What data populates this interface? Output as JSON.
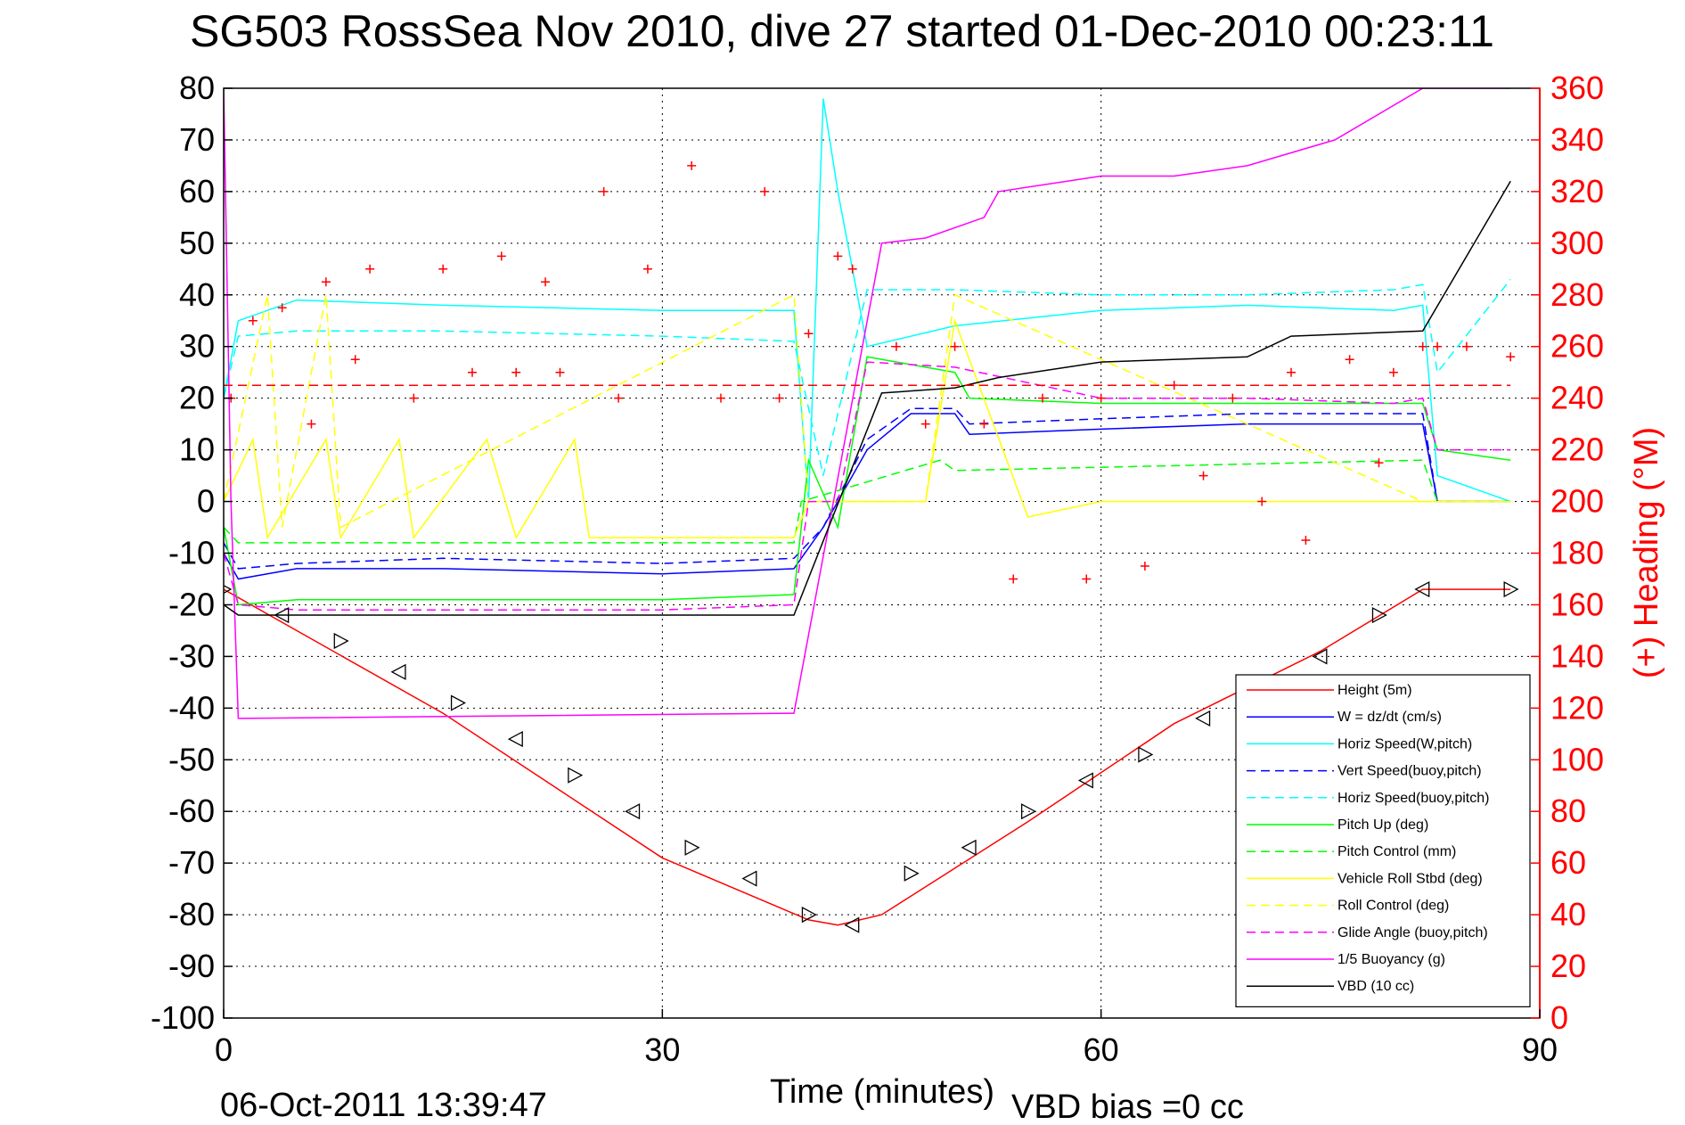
{
  "chart_data": {
    "type": "line",
    "title": "SG503 RossSea Nov 2010, dive 27 started 01-Dec-2010 00:23:11",
    "xlabel": "Time (minutes)",
    "ylabel": "",
    "ylabel_right": "(+) Heading (°M)",
    "xlim": [
      0,
      90
    ],
    "ylim": [
      -100,
      80
    ],
    "ylim_right": [
      0,
      360
    ],
    "x_ticks": [
      "0",
      "30",
      "60",
      "90"
    ],
    "y_ticks": [
      "80",
      "70",
      "60",
      "50",
      "40",
      "30",
      "20",
      "10",
      "0",
      "-10",
      "-20",
      "-30",
      "-40",
      "-50",
      "-60",
      "-70",
      "-80",
      "-90",
      "-100"
    ],
    "y_ticks_right": [
      "360",
      "340",
      "320",
      "300",
      "280",
      "260",
      "240",
      "220",
      "200",
      "180",
      "160",
      "140",
      "120",
      "100",
      "80",
      "60",
      "40",
      "20",
      "0"
    ],
    "grid": true,
    "legend_position": "bottom-right",
    "footer_left": "06-Oct-2011 13:39:47",
    "footer_right": "VBD bias =0 cc",
    "series": [
      {
        "name": "Height (5m)",
        "color": "#ff0000",
        "style": "solid",
        "x": [
          0,
          15,
          30,
          40,
          42,
          45,
          55,
          65,
          75,
          82,
          88
        ],
        "y": [
          -17,
          -41,
          -69,
          -81,
          -82,
          -80,
          -62,
          -43,
          -29,
          -17,
          -17
        ]
      },
      {
        "name": "W = dz/dt (cm/s)",
        "color": "#0000ff",
        "style": "solid",
        "x": [
          0,
          1,
          5,
          15,
          30,
          39,
          41,
          44,
          47,
          50,
          51,
          60,
          70,
          75,
          82,
          83,
          88
        ],
        "y": [
          -10,
          -15,
          -13,
          -13,
          -14,
          -13,
          -5,
          10,
          17,
          17,
          13,
          14,
          15,
          15,
          15,
          0,
          0
        ]
      },
      {
        "name": "Horiz Speed(W,pitch)",
        "color": "#00ffff",
        "style": "solid",
        "x": [
          0,
          1,
          5,
          15,
          30,
          39,
          40,
          41,
          42,
          44,
          50,
          60,
          70,
          80,
          82,
          83,
          88
        ],
        "y": [
          20,
          35,
          39,
          38,
          37,
          37,
          0,
          78,
          60,
          30,
          34,
          37,
          38,
          37,
          38,
          5,
          0
        ]
      },
      {
        "name": "Vert Speed(buoy,pitch)",
        "color": "#0000ff",
        "style": "dashed",
        "x": [
          0,
          1,
          5,
          15,
          30,
          39,
          41,
          44,
          47,
          50,
          51,
          60,
          70,
          80,
          82,
          83,
          88
        ],
        "y": [
          -8,
          -13,
          -12,
          -11,
          -12,
          -11,
          -5,
          12,
          18,
          18,
          15,
          16,
          17,
          17,
          17,
          0,
          0
        ]
      },
      {
        "name": "Horiz Speed(buoy,pitch)",
        "color": "#00ffff",
        "style": "dashed",
        "x": [
          0,
          1,
          5,
          15,
          30,
          39,
          41,
          44,
          50,
          60,
          70,
          80,
          82,
          83,
          88
        ],
        "y": [
          20,
          32,
          33,
          33,
          32,
          31,
          5,
          41,
          41,
          40,
          40,
          41,
          42,
          25,
          43
        ]
      },
      {
        "name": "Pitch Up (deg)",
        "color": "#00ff00",
        "style": "solid",
        "x": [
          0,
          1,
          5,
          15,
          30,
          39,
          40,
          42,
          44,
          50,
          51,
          60,
          70,
          80,
          82,
          83,
          88
        ],
        "y": [
          -5,
          -20,
          -19,
          -19,
          -19,
          -18,
          8,
          -5,
          28,
          25,
          20,
          19,
          19,
          19,
          19,
          10,
          8
        ]
      },
      {
        "name": "Pitch Control (mm)",
        "color": "#00ff00",
        "style": "dashed",
        "x": [
          0,
          1,
          39,
          39.5,
          49,
          50,
          82,
          83,
          88
        ],
        "y": [
          -5,
          -8,
          -8,
          0,
          8,
          6,
          8,
          0,
          0
        ]
      },
      {
        "name": "Vehicle Roll Stbd (deg)",
        "color": "#ffff00",
        "style": "solid",
        "x": [
          0,
          2,
          3,
          7,
          8,
          12,
          13,
          18,
          20,
          24,
          25,
          39,
          40,
          48,
          50,
          55,
          60,
          70,
          80,
          82,
          88
        ],
        "y": [
          0,
          12,
          -7,
          12,
          -7,
          12,
          -7,
          12,
          -7,
          12,
          -7,
          -7,
          0,
          0,
          35,
          -3,
          0,
          0,
          0,
          0,
          0
        ]
      },
      {
        "name": "Roll Control (deg)",
        "color": "#ffff00",
        "style": "dashed",
        "x": [
          0,
          3,
          4,
          7,
          8,
          39,
          40,
          48,
          50,
          82,
          88
        ],
        "y": [
          0,
          40,
          -5,
          40,
          -5,
          40,
          0,
          0,
          40,
          0,
          0
        ]
      },
      {
        "name": "Glide Angle (buoy,pitch)",
        "color": "#ff00ff",
        "style": "dashed",
        "x": [
          0,
          1,
          5,
          15,
          30,
          39,
          40,
          42,
          44,
          50,
          60,
          70,
          80,
          82,
          83,
          88
        ],
        "y": [
          -10,
          -20,
          -21,
          -21,
          -21,
          -20,
          0,
          0,
          27,
          26,
          20,
          20,
          19,
          20,
          10,
          10
        ]
      },
      {
        "name": "1/5 Buoyancy (g)",
        "color": "#ff00ff",
        "style": "solid",
        "x": [
          0,
          0.5,
          1,
          39,
          45,
          48,
          52,
          53,
          60,
          65,
          70,
          76,
          82,
          83,
          88
        ],
        "y": [
          80,
          0,
          -42,
          -41,
          50,
          51,
          55,
          60,
          63,
          63,
          65,
          70,
          80,
          80,
          80
        ]
      },
      {
        "name": "VBD (10 cc)",
        "color": "#000000",
        "style": "solid",
        "x": [
          0,
          1,
          39,
          45,
          50,
          53,
          60,
          70,
          73,
          82,
          88
        ],
        "y": [
          -20,
          -22,
          -22,
          21,
          22,
          24,
          27,
          28,
          32,
          33,
          62
        ]
      },
      {
        "name": "",
        "color": "#ff0000",
        "style": "dashed",
        "x": [
          0,
          88
        ],
        "y": [
          22.5,
          22.5
        ]
      },
      {
        "name": "",
        "color": "#ff0000",
        "style": "markers",
        "axis": "right",
        "x": [
          0.5,
          2,
          4,
          6,
          7,
          9,
          10,
          13,
          15,
          17,
          19,
          20,
          22,
          23,
          26,
          27,
          29,
          32,
          34,
          37,
          38,
          40,
          42,
          43,
          46,
          48,
          50,
          52,
          54,
          56,
          59,
          60,
          63,
          65,
          67,
          69,
          71,
          73,
          74,
          77,
          79,
          80,
          82,
          83,
          85,
          88
        ],
        "y": [
          240,
          270,
          275,
          230,
          285,
          255,
          290,
          240,
          290,
          250,
          295,
          250,
          285,
          250,
          320,
          240,
          290,
          330,
          240,
          320,
          240,
          265,
          295,
          290,
          260,
          230,
          260,
          230,
          170,
          240,
          170,
          240,
          175,
          245,
          210,
          240,
          200,
          250,
          185,
          255,
          215,
          250,
          260,
          260,
          260,
          256
        ]
      },
      {
        "name": "",
        "color": "#000000",
        "style": "markers-triangle",
        "x": [
          0,
          4,
          8,
          12,
          16,
          20,
          24,
          28,
          32,
          36,
          40,
          43,
          47,
          51,
          55,
          59,
          63,
          67,
          71,
          75,
          79,
          82,
          88
        ],
        "y": [
          -17,
          -22,
          -27,
          -33,
          -39,
          -46,
          -53,
          -60,
          -67,
          -73,
          -80,
          -82,
          -72,
          -67,
          -60,
          -54,
          -49,
          -42,
          -36,
          -30,
          -22,
          -17,
          -17
        ]
      }
    ]
  }
}
